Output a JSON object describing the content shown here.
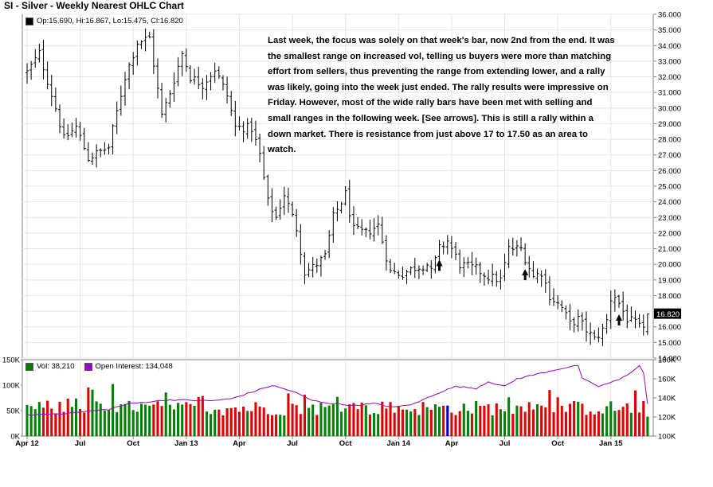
{
  "chart_data": {
    "title": "SI - Silver - Weekly Nearest OHLC Chart",
    "price": {
      "type": "ohlc",
      "legend": "Op:15.690, Hi:16.867, Lo:15.475, Cl:16.820",
      "last_close_label": "16.820",
      "ylim": [
        14,
        36
      ],
      "y_ticks": [
        "14.000",
        "15.000",
        "16.000",
        "17.000",
        "18.000",
        "19.000",
        "20.000",
        "21.000",
        "22.000",
        "23.000",
        "24.000",
        "25.000",
        "26.000",
        "27.000",
        "28.000",
        "29.000",
        "30.000",
        "31.000",
        "32.000",
        "33.000",
        "34.000",
        "35.000",
        "36.000"
      ],
      "anchors": [
        [
          0,
          32.3
        ],
        [
          3,
          33.5
        ],
        [
          7,
          30.0
        ],
        [
          9,
          28.0
        ],
        [
          12,
          28.8
        ],
        [
          15,
          26.8
        ],
        [
          20,
          27.5
        ],
        [
          24,
          32.0
        ],
        [
          27,
          34.2
        ],
        [
          30,
          34.5
        ],
        [
          33,
          29.5
        ],
        [
          35,
          31.0
        ],
        [
          38,
          33.5
        ],
        [
          40,
          32.0
        ],
        [
          43,
          31.5
        ],
        [
          46,
          32.5
        ],
        [
          49,
          30.8
        ],
        [
          51,
          28.8
        ],
        [
          55,
          28.7
        ],
        [
          57,
          27.0
        ],
        [
          59,
          24.0
        ],
        [
          61,
          23.0
        ],
        [
          63,
          24.5
        ],
        [
          66,
          22.3
        ],
        [
          68,
          19.5
        ],
        [
          70,
          19.8
        ],
        [
          73,
          20.5
        ],
        [
          75,
          23.0
        ],
        [
          78,
          24.5
        ],
        [
          80,
          22.2
        ],
        [
          83,
          22.0
        ],
        [
          86,
          22.5
        ],
        [
          89,
          19.5
        ],
        [
          92,
          19.4
        ],
        [
          95,
          19.8
        ],
        [
          98,
          20.0
        ],
        [
          99,
          19.5
        ],
        [
          101,
          21.0
        ],
        [
          103,
          21.5
        ],
        [
          106,
          20.0
        ],
        [
          110,
          19.7
        ],
        [
          113,
          19.2
        ],
        [
          116,
          19.0
        ],
        [
          118,
          21.0
        ],
        [
          121,
          21.0
        ],
        [
          124,
          19.2
        ],
        [
          126,
          19.5
        ],
        [
          128,
          18.0
        ],
        [
          131,
          17.2
        ],
        [
          133,
          16.2
        ],
        [
          135,
          16.5
        ],
        [
          137,
          15.8
        ],
        [
          139,
          15.2
        ],
        [
          141,
          15.8
        ],
        [
          142,
          16.4
        ],
        [
          143,
          17.8
        ],
        [
          144,
          18.0
        ],
        [
          147,
          16.5
        ],
        [
          149,
          16.2
        ],
        [
          150,
          16.0
        ],
        [
          151,
          15.7
        ],
        [
          152,
          16.82
        ]
      ],
      "arrows_week_index": [
        101,
        122,
        145
      ]
    },
    "volume": {
      "legend": "Vol: 38,210",
      "ylim": [
        0,
        150000
      ],
      "y_ticks": [
        "0K",
        "50K",
        "100K",
        "150K"
      ],
      "colors": {
        "up": "#008000",
        "down": "#dd0000",
        "neutral": "#0000cc"
      }
    },
    "open_interest": {
      "legend": "Open Interest: 134,048",
      "color": "#9900cc",
      "ylim": [
        100000,
        180000
      ],
      "y_ticks": [
        "100K",
        "120K",
        "140K",
        "160K",
        "180K"
      ],
      "anchors": [
        [
          0,
          122000
        ],
        [
          10,
          124000
        ],
        [
          20,
          128000
        ],
        [
          25,
          134000
        ],
        [
          35,
          138000
        ],
        [
          45,
          137000
        ],
        [
          50,
          139000
        ],
        [
          55,
          146000
        ],
        [
          60,
          153000
        ],
        [
          65,
          147000
        ],
        [
          70,
          137000
        ],
        [
          75,
          134000
        ],
        [
          80,
          132000
        ],
        [
          85,
          134000
        ],
        [
          90,
          130000
        ],
        [
          95,
          134000
        ],
        [
          100,
          144000
        ],
        [
          105,
          152000
        ],
        [
          110,
          150000
        ],
        [
          113,
          157000
        ],
        [
          117,
          152000
        ],
        [
          120,
          160000
        ],
        [
          124,
          164000
        ],
        [
          130,
          170000
        ],
        [
          135,
          174000
        ],
        [
          136,
          160000
        ],
        [
          140,
          152000
        ],
        [
          145,
          159000
        ],
        [
          147,
          164000
        ],
        [
          150,
          174000
        ],
        [
          151,
          166000
        ],
        [
          152,
          134000
        ]
      ]
    },
    "x_ticks": [
      {
        "label": "Apr 12",
        "week": 0
      },
      {
        "label": "Jul",
        "week": 13
      },
      {
        "label": "Oct",
        "week": 26
      },
      {
        "label": "Jan 13",
        "week": 39
      },
      {
        "label": "Apr",
        "week": 52
      },
      {
        "label": "Jul",
        "week": 65
      },
      {
        "label": "Oct",
        "week": 78
      },
      {
        "label": "Jan 14",
        "week": 91
      },
      {
        "label": "Apr",
        "week": 104
      },
      {
        "label": "Jul",
        "week": 117
      },
      {
        "label": "Oct",
        "week": 130
      },
      {
        "label": "Jan 15",
        "week": 143
      }
    ],
    "weeks": 153
  },
  "annotation": "Last week, the focus was solely on that week's bar, now 2nd from the end.  It was the smallest range on increased vol, telling us buyers were more than matching effort from sellers, thus preventing the range from extending lower, and a rally was likely, going into the week just ended.  The rally results were impressive on Friday.  However, most of the wide rally bars have been met  with selling and small ranges in the following week.  [See arrows].  This is still a rally within a down market.  There is resistance from just above 17 to 17.50 as an area to watch."
}
